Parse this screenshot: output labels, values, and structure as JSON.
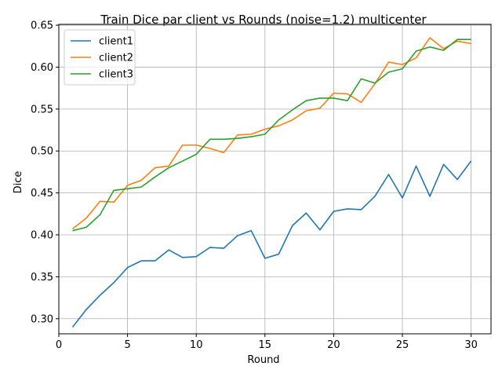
{
  "chart_data": {
    "type": "line",
    "title": "Train Dice par client vs Rounds (noise=1.2) multicenter",
    "xlabel": "Round",
    "ylabel": "Dice",
    "xlim": [
      0,
      31.45
    ],
    "ylim": [
      0.282,
      0.651
    ],
    "xticks": [
      0,
      5,
      10,
      15,
      20,
      25,
      30
    ],
    "xtick_labels": [
      "0",
      "5",
      "10",
      "15",
      "20",
      "25",
      "30"
    ],
    "yticks": [
      0.3,
      0.35,
      0.4,
      0.45,
      0.5,
      0.55,
      0.6,
      0.65
    ],
    "ytick_labels": [
      "0.30",
      "0.35",
      "0.40",
      "0.45",
      "0.50",
      "0.55",
      "0.60",
      "0.65"
    ],
    "grid": true,
    "legend_position": "top-left",
    "x": [
      1,
      2,
      3,
      4,
      5,
      6,
      7,
      8,
      9,
      10,
      11,
      12,
      13,
      14,
      15,
      16,
      17,
      18,
      19,
      20,
      21,
      22,
      23,
      24,
      25,
      26,
      27,
      28,
      29,
      30
    ],
    "series": [
      {
        "name": "client1",
        "color": "#1f77b4",
        "values": [
          0.29,
          0.311,
          0.328,
          0.343,
          0.361,
          0.369,
          0.369,
          0.382,
          0.373,
          0.374,
          0.385,
          0.384,
          0.399,
          0.405,
          0.372,
          0.377,
          0.411,
          0.426,
          0.406,
          0.428,
          0.431,
          0.43,
          0.446,
          0.472,
          0.444,
          0.482,
          0.446,
          0.484,
          0.466,
          0.488
        ]
      },
      {
        "name": "client2",
        "color": "#ff7f0e",
        "values": [
          0.407,
          0.42,
          0.44,
          0.439,
          0.459,
          0.465,
          0.48,
          0.482,
          0.507,
          0.507,
          0.503,
          0.498,
          0.519,
          0.52,
          0.526,
          0.53,
          0.537,
          0.548,
          0.551,
          0.569,
          0.568,
          0.558,
          0.58,
          0.606,
          0.603,
          0.611,
          0.635,
          0.622,
          0.631,
          0.628
        ]
      },
      {
        "name": "client3",
        "color": "#2ca02c",
        "values": [
          0.405,
          0.409,
          0.424,
          0.453,
          0.455,
          0.457,
          0.469,
          0.48,
          0.488,
          0.496,
          0.514,
          0.514,
          0.515,
          0.517,
          0.52,
          0.537,
          0.549,
          0.56,
          0.563,
          0.563,
          0.56,
          0.586,
          0.581,
          0.594,
          0.598,
          0.619,
          0.624,
          0.62,
          0.633,
          0.633
        ]
      }
    ]
  }
}
